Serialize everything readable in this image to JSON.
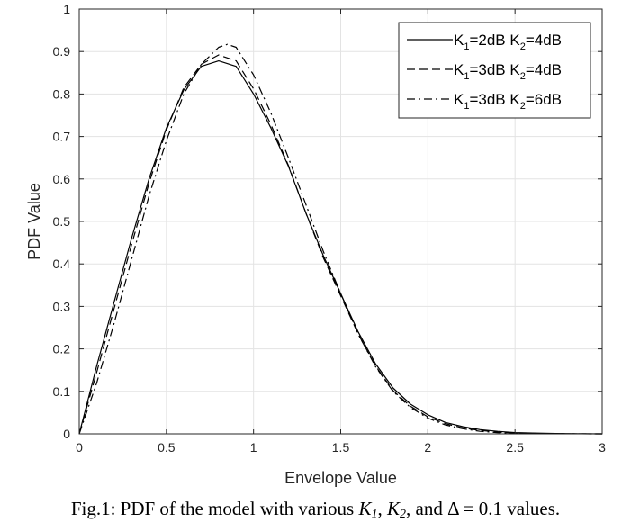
{
  "chart_data": {
    "type": "line",
    "xlabel": "Envelope Value",
    "ylabel": "PDF Value",
    "xlim": [
      0,
      3
    ],
    "ylim": [
      0,
      1
    ],
    "xticks": [
      "0",
      "0.5",
      "1",
      "1.5",
      "2",
      "2.5",
      "3"
    ],
    "yticks": [
      "0",
      "0.1",
      "0.2",
      "0.3",
      "0.4",
      "0.5",
      "0.6",
      "0.7",
      "0.8",
      "0.9",
      "1"
    ],
    "grid": true,
    "legend_position": "top-right",
    "legend": [
      {
        "prefix": "K",
        "sub1": "1",
        "mid": "=2dB K",
        "sub2": "2",
        "suffix": "=4dB"
      },
      {
        "prefix": "K",
        "sub1": "1",
        "mid": "=3dB K",
        "sub2": "2",
        "suffix": "=4dB"
      },
      {
        "prefix": "K",
        "sub1": "1",
        "mid": "=3dB K",
        "sub2": "2",
        "suffix": "=6dB"
      }
    ],
    "series": [
      {
        "style": "solid",
        "x": [
          0,
          0.1,
          0.2,
          0.3,
          0.4,
          0.5,
          0.6,
          0.7,
          0.8,
          0.9,
          1.0,
          1.1,
          1.2,
          1.3,
          1.4,
          1.5,
          1.6,
          1.7,
          1.8,
          1.9,
          2.0,
          2.1,
          2.2,
          2.3,
          2.4,
          2.5,
          2.6,
          2.8,
          3.0
        ],
        "y": [
          0,
          0.16,
          0.31,
          0.46,
          0.6,
          0.72,
          0.81,
          0.865,
          0.878,
          0.865,
          0.8,
          0.72,
          0.63,
          0.52,
          0.42,
          0.33,
          0.24,
          0.165,
          0.108,
          0.07,
          0.045,
          0.027,
          0.017,
          0.01,
          0.006,
          0.003,
          0.002,
          0.0005,
          0
        ]
      },
      {
        "style": "dashed",
        "x": [
          0,
          0.1,
          0.2,
          0.3,
          0.4,
          0.5,
          0.6,
          0.7,
          0.8,
          0.9,
          1.0,
          1.1,
          1.2,
          1.3,
          1.4,
          1.5,
          1.6,
          1.7,
          1.8,
          1.9,
          2.0,
          2.1,
          2.2,
          2.3,
          2.4,
          2.5,
          2.6,
          2.8,
          3.0
        ],
        "y": [
          0,
          0.145,
          0.295,
          0.445,
          0.59,
          0.715,
          0.815,
          0.87,
          0.892,
          0.878,
          0.812,
          0.728,
          0.632,
          0.52,
          0.415,
          0.325,
          0.235,
          0.16,
          0.102,
          0.065,
          0.04,
          0.024,
          0.014,
          0.008,
          0.004,
          0.002,
          0.001,
          0.0003,
          0
        ]
      },
      {
        "style": "dash-dot",
        "x": [
          0,
          0.1,
          0.2,
          0.3,
          0.4,
          0.5,
          0.6,
          0.7,
          0.8,
          0.85,
          0.9,
          1.0,
          1.1,
          1.2,
          1.3,
          1.4,
          1.5,
          1.6,
          1.7,
          1.8,
          1.9,
          2.0,
          2.1,
          2.2,
          2.3,
          2.4,
          2.5,
          2.6,
          2.8,
          3.0
        ],
        "y": [
          0,
          0.12,
          0.26,
          0.41,
          0.56,
          0.69,
          0.8,
          0.87,
          0.91,
          0.917,
          0.91,
          0.845,
          0.755,
          0.65,
          0.54,
          0.43,
          0.33,
          0.235,
          0.158,
          0.1,
          0.062,
          0.037,
          0.021,
          0.012,
          0.006,
          0.003,
          0.0015,
          0.0007,
          0.0002,
          0
        ]
      }
    ]
  },
  "caption": {
    "prefix": "Fig.1: PDF of the model with various ",
    "k1": "K",
    "k1_sub": "1",
    "sep1": ", ",
    "k2": "K",
    "k2_sub": "2",
    "sep2": ",",
    "tail": "and  Δ = 0.1 values."
  }
}
